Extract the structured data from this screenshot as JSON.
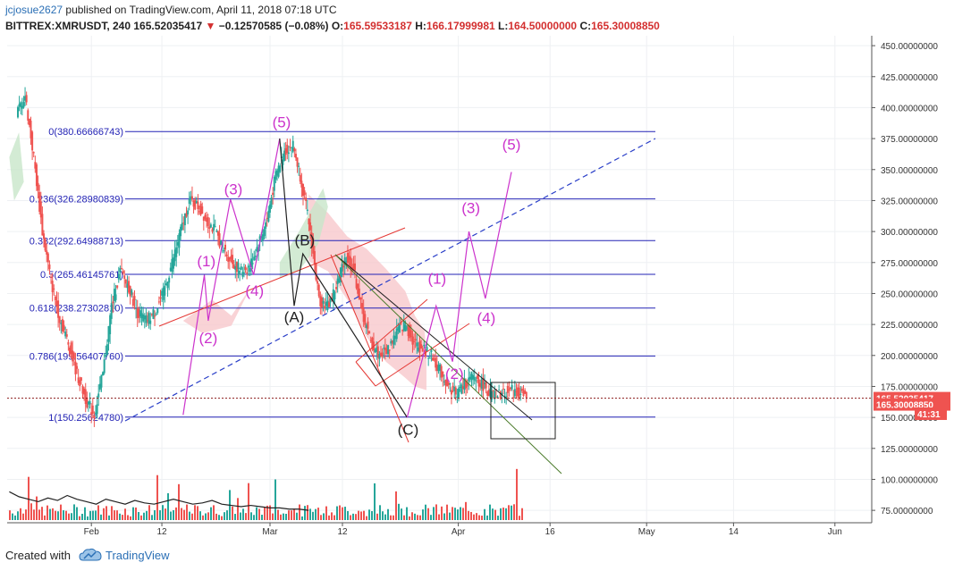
{
  "header": {
    "user": "jcjosue2627",
    "published_text": "published on TradingView.com, April 11, 2018 07:18 UTC",
    "symbol": "BITTREX:XMRUSDT, 240",
    "price": "165.52035417",
    "change_arrow": "▼",
    "change": "−0.12570585 (−0.08%)",
    "o_label": "O:",
    "o_value": "165.59533187",
    "h_label": "H:",
    "h_value": "166.17999981",
    "l_label": "L:",
    "l_value": "164.50000000",
    "c_label": "C:",
    "c_value": "165.30008850"
  },
  "footer": {
    "created_with": "Created with",
    "brand": "TradingView"
  },
  "colors": {
    "up": "#26a69a",
    "down": "#ef5350",
    "fib": "#2323b5",
    "wave": "#cc33cc",
    "corrective": "#222222",
    "channel": "#e53935",
    "cloud": "#f8c8cc",
    "cloud_green": "#c8e6c9"
  },
  "chart_data": {
    "type": "candlestick",
    "symbol": "XMRUSDT",
    "interval": "240",
    "ylim": [
      65,
      458
    ],
    "y_ticks": [
      "450.00000000",
      "425.00000000",
      "400.00000000",
      "375.00000000",
      "350.00000000",
      "325.00000000",
      "300.00000000",
      "275.00000000",
      "250.00000000",
      "225.00000000",
      "200.00000000",
      "175.00000000",
      "150.00000000",
      "125.00000000",
      "100.00000000",
      "75.00000000"
    ],
    "x_ticks": [
      "Feb",
      "12",
      "Mar",
      "12",
      "Apr",
      "16",
      "May",
      "14",
      "Jun"
    ],
    "price_tags": [
      {
        "label": "165.52035417",
        "value": 165.52,
        "color": "#ef5350"
      },
      {
        "label": "165.30008850",
        "value": 160.5,
        "color": "#ef5350"
      },
      {
        "label": "41:31",
        "value": 153,
        "color": "#ef5350"
      }
    ],
    "fib_levels": [
      {
        "label": "0(380.66666743)",
        "value": 380.67
      },
      {
        "label": "0.236(326.28980839)",
        "value": 326.29
      },
      {
        "label": "0.382(292.64988713)",
        "value": 292.65
      },
      {
        "label": "0.5(265.46145761)",
        "value": 265.46
      },
      {
        "label": "0.618(238.27302810)",
        "value": 238.27
      },
      {
        "label": "0.786(199.56407760)",
        "value": 199.56
      },
      {
        "label": "1(150.25624780)",
        "value": 150.26
      }
    ],
    "price_path": [
      [
        0,
        395
      ],
      [
        0.05,
        410
      ],
      [
        0.1,
        360
      ],
      [
        0.2,
        300
      ],
      [
        0.3,
        260
      ],
      [
        0.38,
        230
      ],
      [
        0.45,
        210
      ],
      [
        0.5,
        185
      ],
      [
        0.55,
        165
      ],
      [
        0.6,
        152
      ],
      [
        0.65,
        185
      ],
      [
        0.7,
        240
      ],
      [
        0.75,
        268
      ],
      [
        0.8,
        255
      ],
      [
        0.85,
        235
      ],
      [
        0.9,
        228
      ],
      [
        0.95,
        235
      ],
      [
        1,
        250
      ],
      [
        1.05,
        275
      ],
      [
        1.1,
        300
      ],
      [
        1.15,
        325
      ],
      [
        1.2,
        320
      ],
      [
        1.25,
        310
      ],
      [
        1.3,
        300
      ],
      [
        1.35,
        285
      ],
      [
        1.4,
        275
      ],
      [
        1.45,
        268
      ],
      [
        1.5,
        272
      ],
      [
        1.55,
        290
      ],
      [
        1.6,
        310
      ],
      [
        1.65,
        345
      ],
      [
        1.7,
        365
      ],
      [
        1.75,
        370
      ],
      [
        1.8,
        340
      ],
      [
        1.85,
        300
      ],
      [
        1.9,
        245
      ],
      [
        1.95,
        240
      ],
      [
        2,
        255
      ],
      [
        2.05,
        280
      ],
      [
        2.1,
        270
      ],
      [
        2.15,
        235
      ],
      [
        2.2,
        210
      ],
      [
        2.25,
        200
      ],
      [
        2.3,
        205
      ],
      [
        2.35,
        220
      ],
      [
        2.4,
        225
      ],
      [
        2.45,
        210
      ],
      [
        2.5,
        205
      ],
      [
        2.55,
        200
      ],
      [
        2.6,
        188
      ],
      [
        2.65,
        175
      ],
      [
        2.7,
        170
      ],
      [
        2.75,
        178
      ],
      [
        2.8,
        182
      ],
      [
        2.85,
        176
      ],
      [
        2.9,
        168
      ],
      [
        2.95,
        168
      ],
      [
        3,
        172
      ],
      [
        3.05,
        170
      ],
      [
        3.1,
        166
      ]
    ],
    "volume_path": [
      [
        0,
        90
      ],
      [
        0.1,
        86
      ],
      [
        0.2,
        84
      ],
      [
        0.3,
        82
      ],
      [
        0.4,
        85
      ],
      [
        0.5,
        83
      ],
      [
        0.6,
        87
      ],
      [
        0.7,
        84
      ],
      [
        0.8,
        82
      ],
      [
        0.9,
        80
      ],
      [
        1,
        84
      ],
      [
        1.1,
        82
      ],
      [
        1.2,
        80
      ],
      [
        1.3,
        83
      ],
      [
        1.4,
        81
      ],
      [
        1.5,
        80
      ],
      [
        1.6,
        82
      ],
      [
        1.7,
        84
      ],
      [
        1.8,
        82
      ],
      [
        1.9,
        80
      ],
      [
        2,
        81
      ],
      [
        2.1,
        83
      ],
      [
        2.2,
        80
      ],
      [
        2.3,
        79
      ],
      [
        2.4,
        78
      ],
      [
        2.5,
        79
      ],
      [
        2.6,
        78
      ],
      [
        2.7,
        77
      ],
      [
        2.8,
        77
      ],
      [
        2.9,
        76
      ],
      [
        3,
        76
      ],
      [
        3.1,
        75
      ]
    ],
    "wave_labels": [
      {
        "text": "(1)",
        "x": 0.84,
        "y": 272,
        "color": "wave"
      },
      {
        "text": "(2)",
        "x": 0.86,
        "y": 210,
        "color": "wave"
      },
      {
        "text": "(3)",
        "x": 1.12,
        "y": 330,
        "color": "wave"
      },
      {
        "text": "(4)",
        "x": 1.34,
        "y": 248,
        "color": "wave"
      },
      {
        "text": "(5)",
        "x": 1.62,
        "y": 384,
        "color": "wave"
      },
      {
        "text": "(A)",
        "x": 1.75,
        "y": 227,
        "color": "corrective"
      },
      {
        "text": "(B)",
        "x": 1.86,
        "y": 289,
        "color": "corrective"
      },
      {
        "text": "(C)",
        "x": 2.93,
        "y": 136,
        "color": "corrective"
      },
      {
        "text": "(1)",
        "x": 3.23,
        "y": 258,
        "color": "wave"
      },
      {
        "text": "(2)",
        "x": 3.41,
        "y": 181,
        "color": "wave"
      },
      {
        "text": "(3)",
        "x": 3.58,
        "y": 315,
        "color": "wave"
      },
      {
        "text": "(4)",
        "x": 3.74,
        "y": 226,
        "color": "wave"
      },
      {
        "text": "(5)",
        "x": 4.0,
        "y": 366,
        "color": "wave"
      }
    ],
    "wave_path": [
      [
        0.6,
        152
      ],
      [
        0.82,
        265
      ],
      [
        0.86,
        228
      ],
      [
        1.09,
        326
      ],
      [
        1.33,
        265
      ],
      [
        1.6,
        375
      ],
      [
        1.75,
        240
      ],
      [
        1.84,
        282
      ],
      [
        2.92,
        150
      ],
      [
        3.22,
        240
      ],
      [
        3.39,
        195
      ],
      [
        3.56,
        300
      ],
      [
        3.73,
        246
      ],
      [
        4.0,
        348
      ]
    ]
  }
}
